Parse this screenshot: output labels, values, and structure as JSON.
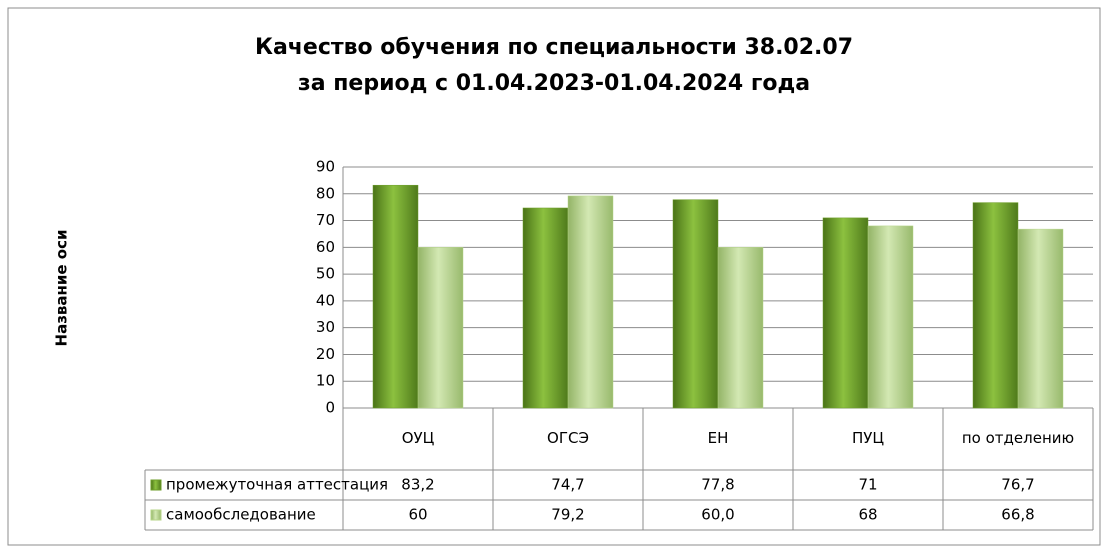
{
  "chart_data": {
    "type": "bar",
    "title": [
      "Качество обучения по специальности 38.02.07",
      "за период с 01.04.2023-01.04.2024 года"
    ],
    "y_label": "Название оси",
    "categories": [
      "ОУЦ",
      "ОГСЭ",
      "ЕН",
      "ПУЦ",
      "по отделению"
    ],
    "series": [
      {
        "name": "промежуточная аттестация",
        "color": "#6e9e2a",
        "values": [
          83.2,
          74.7,
          77.8,
          71,
          76.7
        ],
        "value_labels": [
          "83,2",
          "74,7",
          "77,8",
          "71",
          "76,7"
        ]
      },
      {
        "name": "самообследование",
        "color": "#b7d68a",
        "values": [
          60,
          79.2,
          60.0,
          68,
          66.8
        ],
        "value_labels": [
          "60",
          "79,2",
          "60,0",
          "68",
          "66,8"
        ]
      }
    ],
    "ylim": [
      0,
      90
    ],
    "yticks": [
      0,
      10,
      20,
      30,
      40,
      50,
      60,
      70,
      80,
      90
    ],
    "grid": true
  }
}
